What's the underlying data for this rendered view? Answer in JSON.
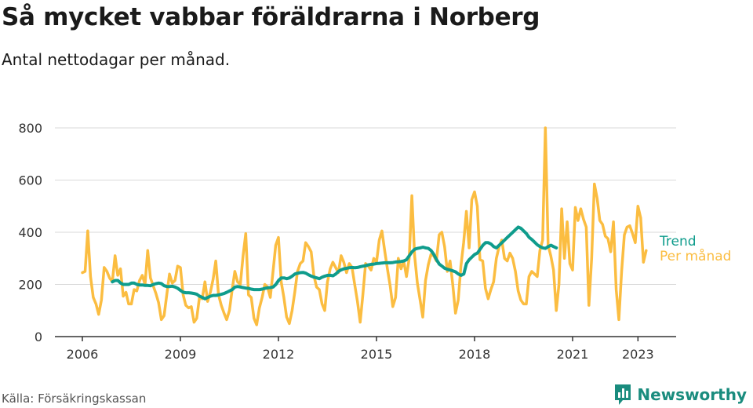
{
  "header": {
    "title": "Så mycket vabbar föräldrarna i Norberg",
    "subtitle": "Antal nettodagar per månad."
  },
  "footer": {
    "source": "Källa: Försäkringskassan",
    "brand": "Newsworthy",
    "brand_icon": "newsworthy-logo-icon"
  },
  "colors": {
    "monthly": "#fbbd41",
    "trend": "#0f9c8c",
    "grid": "#d9d9d9",
    "axis": "#333333",
    "brand": "#1a8c7e"
  },
  "chart_data": {
    "type": "line",
    "x_axis": {
      "start": 2006.0,
      "end": 2023.83,
      "ticks": [
        2006,
        2009,
        2012,
        2015,
        2018,
        2021,
        2023
      ],
      "tick_labels": [
        "2006",
        "2009",
        "2012",
        "2015",
        "2018",
        "2021",
        "2023"
      ]
    },
    "y_axis": {
      "min": 0,
      "max": 800,
      "ticks": [
        0,
        200,
        400,
        600,
        800
      ],
      "tick_labels": [
        "0",
        "200",
        "400",
        "600",
        "800"
      ]
    },
    "grid": true,
    "legend_placement": "right",
    "series": [
      {
        "name": "Per månad",
        "start": 2006.0,
        "step_months": 1,
        "values": [
          245,
          250,
          405,
          230,
          150,
          125,
          85,
          140,
          265,
          250,
          225,
          210,
          310,
          235,
          260,
          155,
          170,
          125,
          125,
          180,
          175,
          215,
          235,
          200,
          330,
          225,
          195,
          165,
          130,
          65,
          80,
          160,
          240,
          205,
          215,
          270,
          265,
          160,
          120,
          110,
          115,
          55,
          70,
          150,
          145,
          210,
          135,
          170,
          220,
          290,
          160,
          120,
          90,
          65,
          100,
          180,
          250,
          210,
          200,
          310,
          395,
          160,
          150,
          70,
          45,
          110,
          150,
          200,
          190,
          150,
          250,
          350,
          380,
          210,
          150,
          75,
          50,
          100,
          170,
          250,
          280,
          290,
          360,
          345,
          325,
          235,
          190,
          180,
          125,
          100,
          210,
          260,
          285,
          265,
          245,
          310,
          285,
          245,
          280,
          265,
          200,
          135,
          55,
          160,
          280,
          270,
          255,
          300,
          285,
          370,
          405,
          330,
          260,
          195,
          115,
          150,
          300,
          260,
          290,
          230,
          300,
          540,
          310,
          205,
          140,
          75,
          215,
          275,
          315,
          310,
          290,
          390,
          400,
          345,
          250,
          290,
          200,
          90,
          140,
          270,
          360,
          480,
          340,
          525,
          555,
          500,
          295,
          290,
          185,
          145,
          180,
          210,
          300,
          345,
          370,
          300,
          290,
          320,
          300,
          250,
          175,
          140,
          125,
          125,
          230,
          250,
          240,
          230,
          330,
          370,
          800,
          350,
          310,
          255,
          100,
          200,
          490,
          300,
          440,
          280,
          255,
          495,
          445,
          490,
          450,
          420,
          120,
          300,
          585,
          530,
          445,
          430,
          385,
          375,
          325,
          440,
          180,
          65,
          250,
          390,
          420,
          425,
          395,
          360,
          500,
          455,
          285,
          330
        ]
      },
      {
        "name": "Trend",
        "start": 2006.92,
        "step_months": 1,
        "values": [
          210,
          215,
          215,
          205,
          200,
          200,
          200,
          205,
          205,
          200,
          198,
          198,
          196,
          196,
          195,
          200,
          203,
          205,
          203,
          195,
          192,
          192,
          193,
          190,
          185,
          177,
          170,
          168,
          168,
          167,
          165,
          162,
          155,
          150,
          145,
          150,
          155,
          158,
          158,
          160,
          162,
          165,
          170,
          175,
          180,
          190,
          192,
          190,
          188,
          186,
          185,
          182,
          180,
          180,
          180,
          182,
          185,
          187,
          188,
          190,
          200,
          215,
          225,
          225,
          222,
          225,
          232,
          240,
          243,
          245,
          246,
          243,
          237,
          232,
          228,
          225,
          222,
          228,
          232,
          235,
          235,
          233,
          240,
          250,
          256,
          260,
          262,
          264,
          265,
          264,
          265,
          268,
          270,
          272,
          275,
          277,
          278,
          280,
          281,
          282,
          283,
          283,
          283,
          284,
          286,
          287,
          288,
          290,
          295,
          310,
          325,
          335,
          338,
          340,
          343,
          340,
          338,
          330,
          315,
          295,
          278,
          270,
          262,
          258,
          255,
          252,
          248,
          240,
          235,
          240,
          280,
          295,
          305,
          315,
          320,
          335,
          350,
          360,
          360,
          355,
          345,
          340,
          350,
          360,
          370,
          380,
          390,
          400,
          410,
          420,
          415,
          405,
          395,
          380,
          372,
          362,
          352,
          345,
          340,
          338,
          345,
          350,
          345,
          340
        ]
      }
    ]
  }
}
